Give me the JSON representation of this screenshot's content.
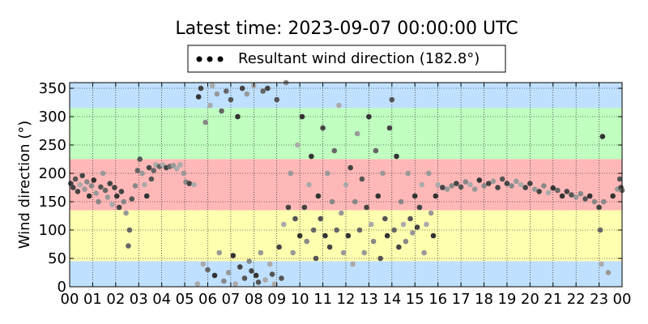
{
  "chart_data": {
    "type": "scatter",
    "title": "Latest time: 2023-09-07 00:00:00 UTC",
    "xlabel": "",
    "ylabel": "Wind direction (°)",
    "xlim": [
      0,
      24
    ],
    "ylim": [
      0,
      360
    ],
    "x_tick_labels": [
      "00",
      "01",
      "02",
      "03",
      "04",
      "05",
      "06",
      "07",
      "08",
      "09",
      "10",
      "11",
      "12",
      "13",
      "14",
      "15",
      "16",
      "17",
      "18",
      "19",
      "20",
      "21",
      "22",
      "23",
      "00"
    ],
    "y_ticks": [
      0,
      50,
      100,
      150,
      200,
      250,
      300,
      350
    ],
    "grid": true,
    "legend": {
      "placement": "top-center",
      "label": "Resultant wind direction (182.8°)"
    },
    "bands": [
      {
        "from": 0,
        "to": 45,
        "color": "#c0e0ff"
      },
      {
        "from": 45,
        "to": 135,
        "color": "#ffffb0"
      },
      {
        "from": 135,
        "to": 225,
        "color": "#ffb8b8"
      },
      {
        "from": 225,
        "to": 315,
        "color": "#c0ffc0"
      },
      {
        "from": 315,
        "to": 360,
        "color": "#c0e0ff"
      }
    ],
    "series": [
      {
        "name": "Resultant wind direction (182.8°)",
        "points": [
          [
            0.05,
            182
          ],
          [
            0.15,
            175
          ],
          [
            0.25,
            190
          ],
          [
            0.35,
            168
          ],
          [
            0.45,
            180
          ],
          [
            0.55,
            196
          ],
          [
            0.65,
            172
          ],
          [
            0.75,
            185
          ],
          [
            0.85,
            160
          ],
          [
            0.95,
            178
          ],
          [
            1.05,
            188
          ],
          [
            1.15,
            165
          ],
          [
            1.25,
            150
          ],
          [
            1.35,
            176
          ],
          [
            1.45,
            200
          ],
          [
            1.55,
            170
          ],
          [
            1.65,
            158
          ],
          [
            1.75,
            182
          ],
          [
            1.85,
            145
          ],
          [
            1.95,
            175
          ],
          [
            2.05,
            160
          ],
          [
            2.15,
            140
          ],
          [
            2.25,
            168
          ],
          [
            2.35,
            150
          ],
          [
            2.45,
            130
          ],
          [
            2.55,
            72
          ],
          [
            2.6,
            100
          ],
          [
            2.7,
            155
          ],
          [
            2.85,
            178
          ],
          [
            2.95,
            205
          ],
          [
            3.05,
            225
          ],
          [
            3.15,
            200
          ],
          [
            3.25,
            180
          ],
          [
            3.35,
            160
          ],
          [
            3.45,
            210
          ],
          [
            3.55,
            190
          ],
          [
            3.65,
            205
          ],
          [
            3.75,
            215
          ],
          [
            3.9,
            212
          ],
          [
            4.05,
            215
          ],
          [
            4.2,
            210
          ],
          [
            4.35,
            212
          ],
          [
            4.5,
            214
          ],
          [
            4.65,
            208
          ],
          [
            4.8,
            215
          ],
          [
            4.95,
            200
          ],
          [
            5.05,
            185
          ],
          [
            5.2,
            182
          ],
          [
            5.4,
            180
          ],
          [
            5.55,
            5
          ],
          [
            5.6,
            335
          ],
          [
            5.7,
            350
          ],
          [
            5.8,
            40
          ],
          [
            5.9,
            290
          ],
          [
            6.0,
            30
          ],
          [
            6.1,
            320
          ],
          [
            6.2,
            355
          ],
          [
            6.3,
            20
          ],
          [
            6.4,
            340
          ],
          [
            6.5,
            60
          ],
          [
            6.6,
            310
          ],
          [
            6.7,
            10
          ],
          [
            6.8,
            345
          ],
          [
            6.9,
            25
          ],
          [
            7.0,
            330
          ],
          [
            7.1,
            55
          ],
          [
            7.2,
            5
          ],
          [
            7.3,
            300
          ],
          [
            7.4,
            35
          ],
          [
            7.5,
            350
          ],
          [
            7.6,
            15
          ],
          [
            7.7,
            340
          ],
          [
            7.8,
            45
          ],
          [
            7.9,
            28
          ],
          [
            8.0,
            355
          ],
          [
            8.1,
            20
          ],
          [
            8.2,
            8
          ],
          [
            8.3,
            60
          ],
          [
            8.4,
            345
          ],
          [
            8.5,
            12
          ],
          [
            8.6,
            350
          ],
          [
            8.7,
            40
          ],
          [
            8.8,
            22
          ],
          [
            8.9,
            5
          ],
          [
            9.0,
            330
          ],
          [
            9.1,
            70
          ],
          [
            9.2,
            15
          ],
          [
            9.3,
            110
          ],
          [
            9.4,
            360
          ],
          [
            9.5,
            140
          ],
          [
            9.6,
            200
          ],
          [
            9.7,
            60
          ],
          [
            9.8,
            120
          ],
          [
            9.9,
            250
          ],
          [
            10.0,
            90
          ],
          [
            10.1,
            300
          ],
          [
            10.2,
            140
          ],
          [
            10.3,
            80
          ],
          [
            10.4,
            180
          ],
          [
            10.5,
            230
          ],
          [
            10.6,
            100
          ],
          [
            10.7,
            50
          ],
          [
            10.8,
            160
          ],
          [
            10.9,
            120
          ],
          [
            11.0,
            280
          ],
          [
            11.1,
            90
          ],
          [
            11.2,
            200
          ],
          [
            11.3,
            70
          ],
          [
            11.4,
            150
          ],
          [
            11.5,
            240
          ],
          [
            11.6,
            100
          ],
          [
            11.7,
            320
          ],
          [
            11.8,
            130
          ],
          [
            11.9,
            60
          ],
          [
            12.0,
            180
          ],
          [
            12.1,
            90
          ],
          [
            12.2,
            210
          ],
          [
            12.3,
            40
          ],
          [
            12.4,
            150
          ],
          [
            12.5,
            270
          ],
          [
            12.6,
            100
          ],
          [
            12.7,
            190
          ],
          [
            12.8,
            60
          ],
          [
            12.9,
            140
          ],
          [
            13.0,
            300
          ],
          [
            13.1,
            110
          ],
          [
            13.2,
            80
          ],
          [
            13.3,
            240
          ],
          [
            13.4,
            160
          ],
          [
            13.5,
            50
          ],
          [
            13.6,
            200
          ],
          [
            13.7,
            120
          ],
          [
            13.8,
            90
          ],
          [
            13.9,
            280
          ],
          [
            14.0,
            330
          ],
          [
            14.1,
            100
          ],
          [
            14.2,
            230
          ],
          [
            14.3,
            70
          ],
          [
            14.4,
            150
          ],
          [
            14.5,
            110
          ],
          [
            14.6,
            80
          ],
          [
            14.7,
            200
          ],
          [
            14.8,
            120
          ],
          [
            14.9,
            95
          ],
          [
            15.0,
            160
          ],
          [
            15.1,
            105
          ],
          [
            15.2,
            140
          ],
          [
            15.3,
            180
          ],
          [
            15.4,
            60
          ],
          [
            15.5,
            110
          ],
          [
            15.6,
            200
          ],
          [
            15.7,
            130
          ],
          [
            15.8,
            90
          ],
          [
            15.9,
            160
          ],
          [
            16.0,
            180
          ],
          [
            16.2,
            175
          ],
          [
            16.4,
            172
          ],
          [
            16.6,
            178
          ],
          [
            16.8,
            182
          ],
          [
            17.0,
            176
          ],
          [
            17.2,
            185
          ],
          [
            17.4,
            180
          ],
          [
            17.6,
            172
          ],
          [
            17.8,
            188
          ],
          [
            18.0,
            178
          ],
          [
            18.2,
            182
          ],
          [
            18.4,
            186
          ],
          [
            18.6,
            175
          ],
          [
            18.8,
            190
          ],
          [
            19.0,
            182
          ],
          [
            19.2,
            178
          ],
          [
            19.4,
            186
          ],
          [
            19.6,
            180
          ],
          [
            19.8,
            175
          ],
          [
            20.0,
            182
          ],
          [
            20.2,
            172
          ],
          [
            20.4,
            168
          ],
          [
            20.6,
            178
          ],
          [
            20.8,
            166
          ],
          [
            21.0,
            174
          ],
          [
            21.2,
            170
          ],
          [
            21.4,
            160
          ],
          [
            21.6,
            168
          ],
          [
            21.8,
            162
          ],
          [
            22.0,
            158
          ],
          [
            22.2,
            164
          ],
          [
            22.4,
            155
          ],
          [
            22.6,
            160
          ],
          [
            22.8,
            150
          ],
          [
            23.0,
            140
          ],
          [
            23.05,
            100
          ],
          [
            23.1,
            40
          ],
          [
            23.15,
            265
          ],
          [
            23.2,
            150
          ],
          [
            23.4,
            25
          ],
          [
            23.6,
            160
          ],
          [
            23.8,
            172
          ],
          [
            23.9,
            190
          ],
          [
            23.95,
            175
          ],
          [
            24.0,
            170
          ]
        ]
      }
    ]
  }
}
